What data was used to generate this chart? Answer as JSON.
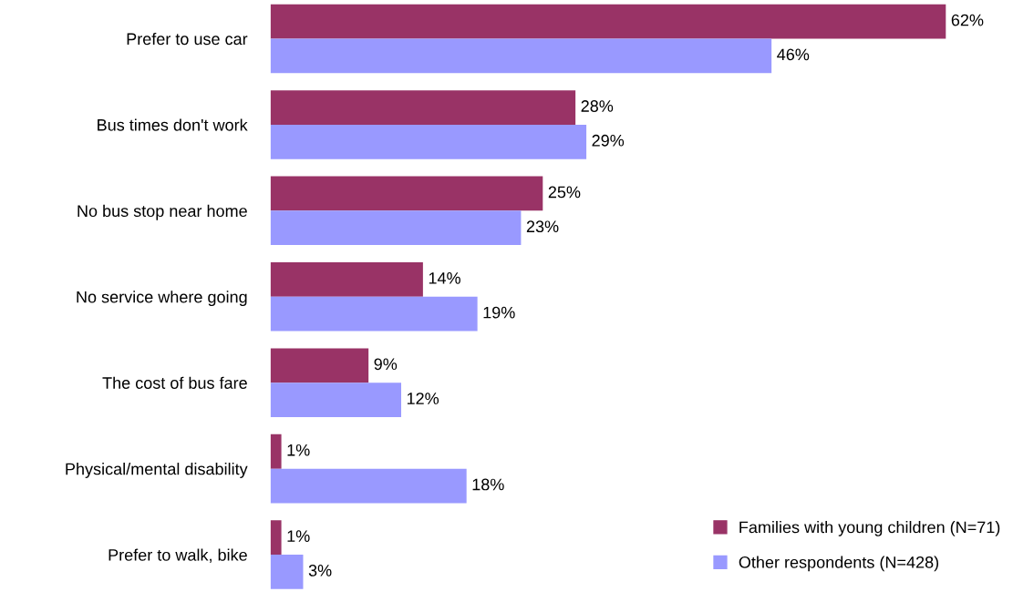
{
  "chart_data": {
    "type": "bar",
    "orientation": "horizontal",
    "categories": [
      "Prefer to use car",
      "Bus times don't work",
      "No bus stop near home",
      "No service where going",
      "The cost of bus fare",
      "Physical/mental disability",
      "Prefer to walk, bike"
    ],
    "series": [
      {
        "name": "Families with young children (N=71)",
        "color": "#993366",
        "values": [
          62,
          28,
          25,
          14,
          9,
          1,
          1
        ],
        "value_labels": [
          "62%",
          "28%",
          "25%",
          "14%",
          "9%",
          "1%",
          "1%"
        ]
      },
      {
        "name": "Other respondents (N=428)",
        "color": "#9999ff",
        "values": [
          46,
          29,
          23,
          19,
          12,
          18,
          3
        ],
        "value_labels": [
          "46%",
          "29%",
          "23%",
          "19%",
          "12%",
          "18%",
          "3%"
        ]
      }
    ],
    "tick_labels": "y",
    "grid": false,
    "legend": "bottom right"
  }
}
